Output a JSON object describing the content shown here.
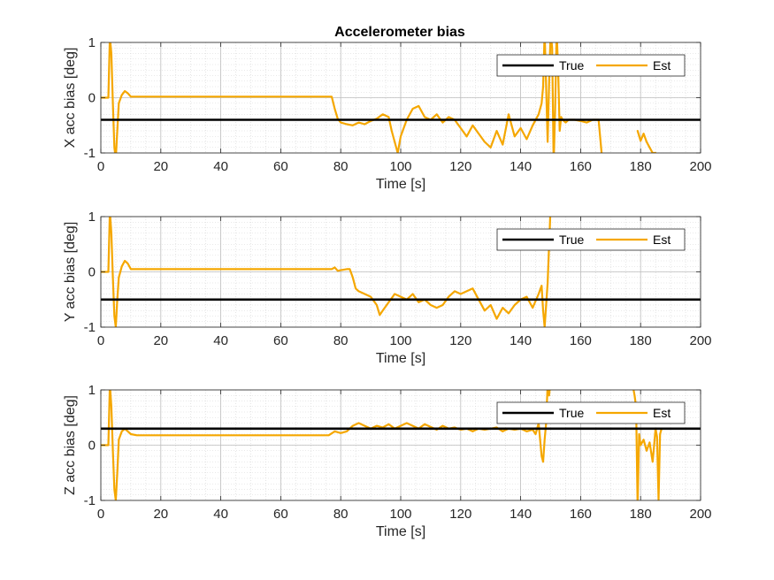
{
  "figure": {
    "title": "Accelerometer bias"
  },
  "chart_data": [
    {
      "type": "line",
      "title": "Accelerometer bias",
      "xlabel": "Time [s]",
      "ylabel": "X acc bias [deg]",
      "xlim": [
        0,
        200
      ],
      "ylim": [
        -1,
        1
      ],
      "xticks": [
        0,
        20,
        40,
        60,
        80,
        100,
        120,
        140,
        160,
        180,
        200
      ],
      "yticks": [
        -1,
        0,
        1
      ],
      "grid": "on",
      "minor_grid": "on",
      "legend": {
        "position": "top-right",
        "entries": [
          "True",
          "Est"
        ]
      },
      "series": [
        {
          "name": "True",
          "color": "#000000",
          "x": [
            0,
            200
          ],
          "y": [
            -0.4,
            -0.4
          ]
        },
        {
          "name": "Est",
          "color": "#F5A700",
          "x": [
            0,
            2.5,
            3,
            3.5,
            4,
            4.5,
            5,
            5.5,
            6,
            7,
            8,
            9,
            10,
            15,
            20,
            30,
            40,
            50,
            60,
            70,
            77,
            78,
            79,
            80,
            82,
            84,
            86,
            88,
            90,
            92,
            94,
            96,
            97,
            98,
            99,
            100,
            102,
            104,
            106,
            108,
            110,
            112,
            114,
            116,
            118,
            120,
            122,
            124,
            126,
            128,
            130,
            131,
            132,
            134,
            136,
            138,
            140,
            142,
            144,
            146,
            147,
            147.5,
            148,
            148.5,
            149,
            149.5,
            150,
            150.5,
            151,
            151.5,
            152,
            152.5,
            153,
            153.5,
            154,
            155,
            156,
            158,
            160,
            162,
            164,
            166,
            167,
            null,
            179,
            180,
            181,
            182,
            183,
            184,
            185
          ],
          "y": [
            0,
            0,
            1.1,
            0.8,
            -0.1,
            -0.9,
            -1.1,
            -0.6,
            -0.1,
            0.05,
            0.12,
            0.08,
            0.02,
            0.02,
            0.02,
            0.02,
            0.02,
            0.02,
            0.02,
            0.02,
            0.02,
            -0.2,
            -0.38,
            -0.45,
            -0.48,
            -0.5,
            -0.45,
            -0.48,
            -0.42,
            -0.38,
            -0.3,
            -0.35,
            -0.6,
            -0.8,
            -1.0,
            -0.7,
            -0.4,
            -0.2,
            -0.15,
            -0.35,
            -0.4,
            -0.3,
            -0.45,
            -0.35,
            -0.4,
            -0.55,
            -0.7,
            -0.5,
            -0.65,
            -0.8,
            -0.9,
            -0.75,
            -0.6,
            -0.85,
            -0.3,
            -0.7,
            -0.55,
            -0.75,
            -0.5,
            -0.3,
            -0.1,
            0.2,
            1.2,
            0.2,
            -0.8,
            0.3,
            1.2,
            0.9,
            -1.2,
            -0.2,
            1.2,
            0.5,
            -0.6,
            -0.35,
            -0.4,
            -0.45,
            -0.4,
            -0.4,
            -0.42,
            -0.45,
            -0.4,
            -0.4,
            -1.0,
            null,
            -0.6,
            -0.78,
            -0.65,
            -0.8,
            -0.9,
            -1.0,
            -1.0
          ]
        }
      ]
    },
    {
      "type": "line",
      "title": "",
      "xlabel": "Time [s]",
      "ylabel": "Y acc bias [deg]",
      "xlim": [
        0,
        200
      ],
      "ylim": [
        -1,
        1
      ],
      "xticks": [
        0,
        20,
        40,
        60,
        80,
        100,
        120,
        140,
        160,
        180,
        200
      ],
      "yticks": [
        -1,
        0,
        1
      ],
      "grid": "on",
      "minor_grid": "on",
      "legend": {
        "position": "top-right",
        "entries": [
          "True",
          "Est"
        ]
      },
      "series": [
        {
          "name": "True",
          "color": "#000000",
          "x": [
            0,
            200
          ],
          "y": [
            -0.5,
            -0.5
          ]
        },
        {
          "name": "Est",
          "color": "#F5A700",
          "x": [
            0,
            2.5,
            3,
            3.5,
            4,
            4.5,
            5,
            5.5,
            6,
            7,
            8,
            9,
            10,
            15,
            20,
            30,
            40,
            50,
            60,
            70,
            77,
            78,
            79,
            80,
            82,
            83,
            84,
            85,
            86,
            88,
            90,
            92,
            93,
            94,
            96,
            98,
            100,
            102,
            104,
            106,
            108,
            110,
            112,
            114,
            116,
            118,
            120,
            122,
            124,
            126,
            128,
            130,
            132,
            134,
            136,
            138,
            140,
            142,
            144,
            146,
            147,
            147.5,
            148,
            148.5,
            149,
            149.5,
            150
          ],
          "y": [
            0,
            0,
            1.1,
            0.7,
            -0.1,
            -0.8,
            -1.0,
            -0.5,
            -0.1,
            0.1,
            0.2,
            0.15,
            0.05,
            0.05,
            0.05,
            0.05,
            0.05,
            0.05,
            0.05,
            0.05,
            0.05,
            0.08,
            0.02,
            0.03,
            0.05,
            0.05,
            -0.1,
            -0.3,
            -0.35,
            -0.4,
            -0.45,
            -0.6,
            -0.78,
            -0.7,
            -0.55,
            -0.4,
            -0.45,
            -0.5,
            -0.4,
            -0.55,
            -0.5,
            -0.6,
            -0.65,
            -0.6,
            -0.45,
            -0.35,
            -0.4,
            -0.35,
            -0.3,
            -0.5,
            -0.7,
            -0.6,
            -0.85,
            -0.65,
            -0.75,
            -0.6,
            -0.5,
            -0.45,
            -0.65,
            -0.4,
            -0.25,
            -0.7,
            -1.0,
            -0.6,
            -0.2,
            0.5,
            1.2
          ]
        }
      ]
    },
    {
      "type": "line",
      "title": "",
      "xlabel": "Time [s]",
      "ylabel": "Z acc bias [deg]",
      "xlim": [
        0,
        200
      ],
      "ylim": [
        -1,
        1
      ],
      "xticks": [
        0,
        20,
        40,
        60,
        80,
        100,
        120,
        140,
        160,
        180,
        200
      ],
      "yticks": [
        -1,
        0,
        1
      ],
      "grid": "on",
      "minor_grid": "on",
      "legend": {
        "position": "top-right",
        "entries": [
          "True",
          "Est"
        ]
      },
      "series": [
        {
          "name": "True",
          "color": "#000000",
          "x": [
            0,
            200
          ],
          "y": [
            0.3,
            0.3
          ]
        },
        {
          "name": "Est",
          "color": "#F5A700",
          "x": [
            0,
            2.5,
            3,
            3.5,
            4,
            4.5,
            5,
            5.5,
            6,
            7,
            8,
            9,
            10,
            12,
            15,
            20,
            30,
            40,
            50,
            60,
            70,
            76,
            78,
            80,
            82,
            84,
            86,
            88,
            90,
            92,
            94,
            96,
            98,
            100,
            102,
            104,
            106,
            108,
            110,
            112,
            114,
            116,
            118,
            120,
            122,
            124,
            126,
            128,
            130,
            132,
            134,
            136,
            138,
            140,
            142,
            144,
            145,
            146,
            147,
            147.5,
            148,
            148.5,
            149,
            149.5,
            150,
            null,
            177,
            178,
            178.5,
            179,
            179.5,
            180,
            181,
            182,
            183,
            184,
            184.5,
            185,
            185.5,
            186,
            186.5,
            187
          ],
          "y": [
            0,
            0,
            1.1,
            0.7,
            -0.1,
            -0.8,
            -1.0,
            -0.5,
            0.1,
            0.25,
            0.3,
            0.25,
            0.2,
            0.18,
            0.18,
            0.18,
            0.18,
            0.18,
            0.18,
            0.18,
            0.18,
            0.18,
            0.25,
            0.22,
            0.25,
            0.35,
            0.4,
            0.35,
            0.3,
            0.35,
            0.32,
            0.38,
            0.3,
            0.35,
            0.4,
            0.35,
            0.3,
            0.38,
            0.33,
            0.28,
            0.35,
            0.3,
            0.32,
            0.28,
            0.3,
            0.25,
            0.3,
            0.28,
            0.3,
            0.32,
            0.25,
            0.3,
            0.28,
            0.3,
            0.25,
            0.28,
            0.2,
            0.4,
            -0.2,
            -0.3,
            0.1,
            0.4,
            1.1,
            0.9,
            1.2,
            null,
            1.2,
            0.9,
            0.7,
            -1.1,
            0.2,
            0.0,
            0.1,
            -0.1,
            0.05,
            -0.3,
            0.0,
            0.3,
            0.15,
            -1.0,
            0.2,
            0.3
          ]
        }
      ]
    }
  ]
}
